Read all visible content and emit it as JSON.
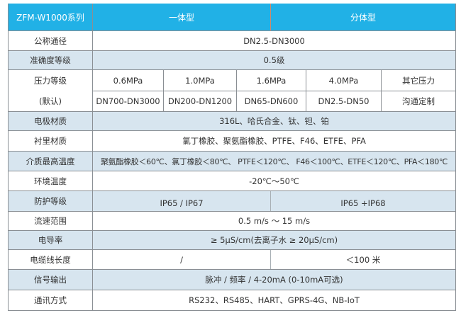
{
  "header": {
    "series": "ZFM-W1000系列",
    "integrated": "一体型",
    "split": "分体型"
  },
  "colors": {
    "header_bg": "#21b1e6",
    "alt_row_bg": "#d7e5ef",
    "border": "#8a8f94"
  },
  "rows": {
    "nominal_diameter": {
      "label": "公称通径",
      "value": "DN2.5-DN3000"
    },
    "accuracy": {
      "label": "准确度等级",
      "value": "0.5级"
    },
    "pressure": {
      "label": "压力等级",
      "label2": "(默认)",
      "pressures": [
        "0.6MPa",
        "1.0MPa",
        "1.6MPa",
        "4.0MPa",
        "其它压力"
      ],
      "diameters": [
        "DN700-DN3000",
        "DN200-DN1200",
        "DN65-DN600",
        "DN2.5-DN50",
        "沟通定制"
      ]
    },
    "electrode": {
      "label": "电极材质",
      "value": "316L、哈氏合金、钛、钽、铂"
    },
    "lining": {
      "label": "衬里材质",
      "value": "氯丁橡胶、聚氨酯橡胶、PTFE、F46、ETFE、PFA"
    },
    "max_temp": {
      "label": "介质最高温度",
      "value": "聚氨酯橡胶＜60℃、氯丁橡胶＜80℃、 PTFE＜120℃、 F46＜100℃、ETFE＜120℃、PFA＜180℃"
    },
    "ambient_temp": {
      "label": "环境温度",
      "value": "-20℃～50℃"
    },
    "protection": {
      "label": "防护等级",
      "integrated": "IP65 / IP67",
      "split": "IP65 +IP68"
    },
    "flow_range": {
      "label": "流速范围",
      "value": "0.5 m/s ～ 15 m/s"
    },
    "conductivity": {
      "label": "电导率",
      "value": "≥ 5μS/cm(去离子水 ≥ 20μS/cm)"
    },
    "cable_length": {
      "label": "电缆线长度",
      "integrated": "/",
      "split": "＜100 米"
    },
    "signal": {
      "label": "信号输出",
      "value": "脉冲 / 频率 / 4-20mA (0-10mA可选)"
    },
    "comm": {
      "label": "通讯方式",
      "value": "RS232、RS485、HART、GPRS-4G、NB-IoT"
    }
  }
}
